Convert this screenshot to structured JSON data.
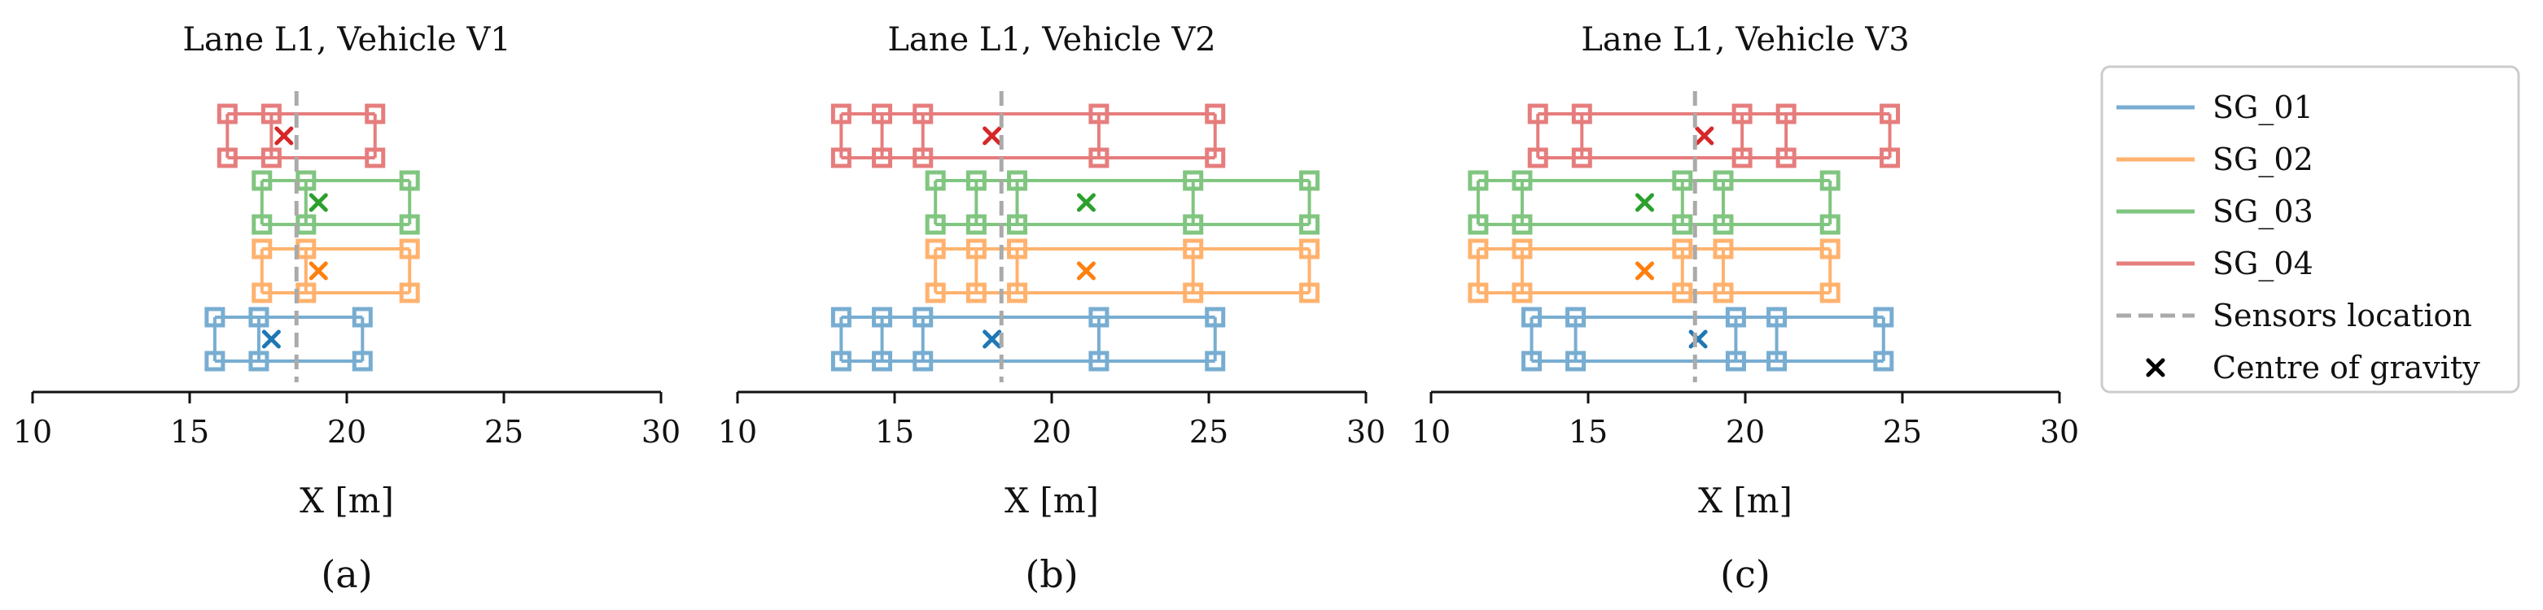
{
  "chart_data": [
    {
      "panel": "a",
      "panel_label": "(a)",
      "type": "scatter",
      "title": "Lane L1, Vehicle V1",
      "xlabel": "X [m]",
      "xlim": [
        10,
        30
      ],
      "xticks": [
        10,
        15,
        20,
        25,
        30
      ],
      "sensors_location": 18.4,
      "groups": [
        {
          "name": "SG_01",
          "axles": [
            15.8,
            17.2,
            20.5
          ],
          "cog": 17.6
        },
        {
          "name": "SG_02",
          "axles": [
            17.3,
            18.7,
            22.0
          ],
          "cog": 19.1
        },
        {
          "name": "SG_03",
          "axles": [
            17.3,
            18.7,
            22.0
          ],
          "cog": 19.1
        },
        {
          "name": "SG_04",
          "axles": [
            16.2,
            17.6,
            20.9
          ],
          "cog": 18.0
        }
      ]
    },
    {
      "panel": "b",
      "panel_label": "(b)",
      "type": "scatter",
      "title": "Lane L1, Vehicle V2",
      "xlabel": "X [m]",
      "xlim": [
        10,
        30
      ],
      "xticks": [
        10,
        15,
        20,
        25,
        30
      ],
      "sensors_location": 18.4,
      "groups": [
        {
          "name": "SG_01",
          "axles": [
            13.3,
            14.6,
            15.9,
            21.5,
            25.2
          ],
          "cog": 18.1
        },
        {
          "name": "SG_02",
          "axles": [
            16.3,
            17.6,
            18.9,
            24.5,
            28.2
          ],
          "cog": 21.1
        },
        {
          "name": "SG_03",
          "axles": [
            16.3,
            17.6,
            18.9,
            24.5,
            28.2
          ],
          "cog": 21.1
        },
        {
          "name": "SG_04",
          "axles": [
            13.3,
            14.6,
            15.9,
            21.5,
            25.2
          ],
          "cog": 18.1
        }
      ]
    },
    {
      "panel": "c",
      "panel_label": "(c)",
      "type": "scatter",
      "title": "Lane L1, Vehicle V3",
      "xlabel": "X [m]",
      "xlim": [
        10,
        30
      ],
      "xticks": [
        10,
        15,
        20,
        25,
        30
      ],
      "sensors_location": 18.4,
      "groups": [
        {
          "name": "SG_01",
          "axles": [
            13.2,
            14.6,
            19.7,
            21.0,
            24.4
          ],
          "cog": 18.5
        },
        {
          "name": "SG_02",
          "axles": [
            11.5,
            12.9,
            18.0,
            19.3,
            22.7
          ],
          "cog": 16.8
        },
        {
          "name": "SG_03",
          "axles": [
            11.5,
            12.9,
            18.0,
            19.3,
            22.7
          ],
          "cog": 16.8
        },
        {
          "name": "SG_04",
          "axles": [
            13.4,
            14.8,
            19.9,
            21.3,
            24.6
          ],
          "cog": 18.7
        }
      ]
    }
  ],
  "legend": {
    "position": "right",
    "entries": [
      {
        "label": "SG_01",
        "kind": "line",
        "color": "#1f77b4"
      },
      {
        "label": "SG_02",
        "kind": "line",
        "color": "#ff7f0e"
      },
      {
        "label": "SG_03",
        "kind": "line",
        "color": "#2ca02c"
      },
      {
        "label": "SG_04",
        "kind": "line",
        "color": "#d62728"
      },
      {
        "label": "Sensors location",
        "kind": "dashed",
        "color": "#aaaaaa"
      },
      {
        "label": "Centre of gravity",
        "kind": "cross",
        "color": "#000000"
      }
    ]
  },
  "colors": {
    "SG_01": "#1f77b4",
    "SG_02": "#ff7f0e",
    "SG_03": "#2ca02c",
    "SG_04": "#d62728",
    "sensors": "#aaaaaa"
  }
}
